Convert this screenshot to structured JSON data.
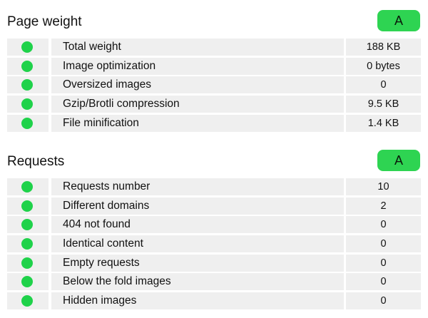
{
  "colors": {
    "ok_dot": "#1fd24a",
    "grade_badge": "#2ed452",
    "row_background": "#efefef"
  },
  "page_weight": {
    "title": "Page weight",
    "grade": "A",
    "rows": [
      {
        "label": "Total weight",
        "value": "188 KB",
        "status_icon": "green-dot-icon"
      },
      {
        "label": "Image optimization",
        "value": "0 bytes",
        "status_icon": "green-dot-icon"
      },
      {
        "label": "Oversized images",
        "value": "0",
        "status_icon": "green-dot-icon"
      },
      {
        "label": "Gzip/Brotli compression",
        "value": "9.5 KB",
        "status_icon": "green-dot-icon"
      },
      {
        "label": "File minification",
        "value": "1.4 KB",
        "status_icon": "green-dot-icon"
      }
    ]
  },
  "requests": {
    "title": "Requests",
    "grade": "A",
    "rows": [
      {
        "label": "Requests number",
        "value": "10",
        "status_icon": "green-dot-icon"
      },
      {
        "label": "Different domains",
        "value": "2",
        "status_icon": "green-dot-icon"
      },
      {
        "label": "404 not found",
        "value": "0",
        "status_icon": "green-dot-icon"
      },
      {
        "label": "Identical content",
        "value": "0",
        "status_icon": "green-dot-icon"
      },
      {
        "label": "Empty requests",
        "value": "0",
        "status_icon": "green-dot-icon"
      },
      {
        "label": "Below the fold images",
        "value": "0",
        "status_icon": "green-dot-icon"
      },
      {
        "label": "Hidden images",
        "value": "0",
        "status_icon": "green-dot-icon"
      }
    ]
  }
}
